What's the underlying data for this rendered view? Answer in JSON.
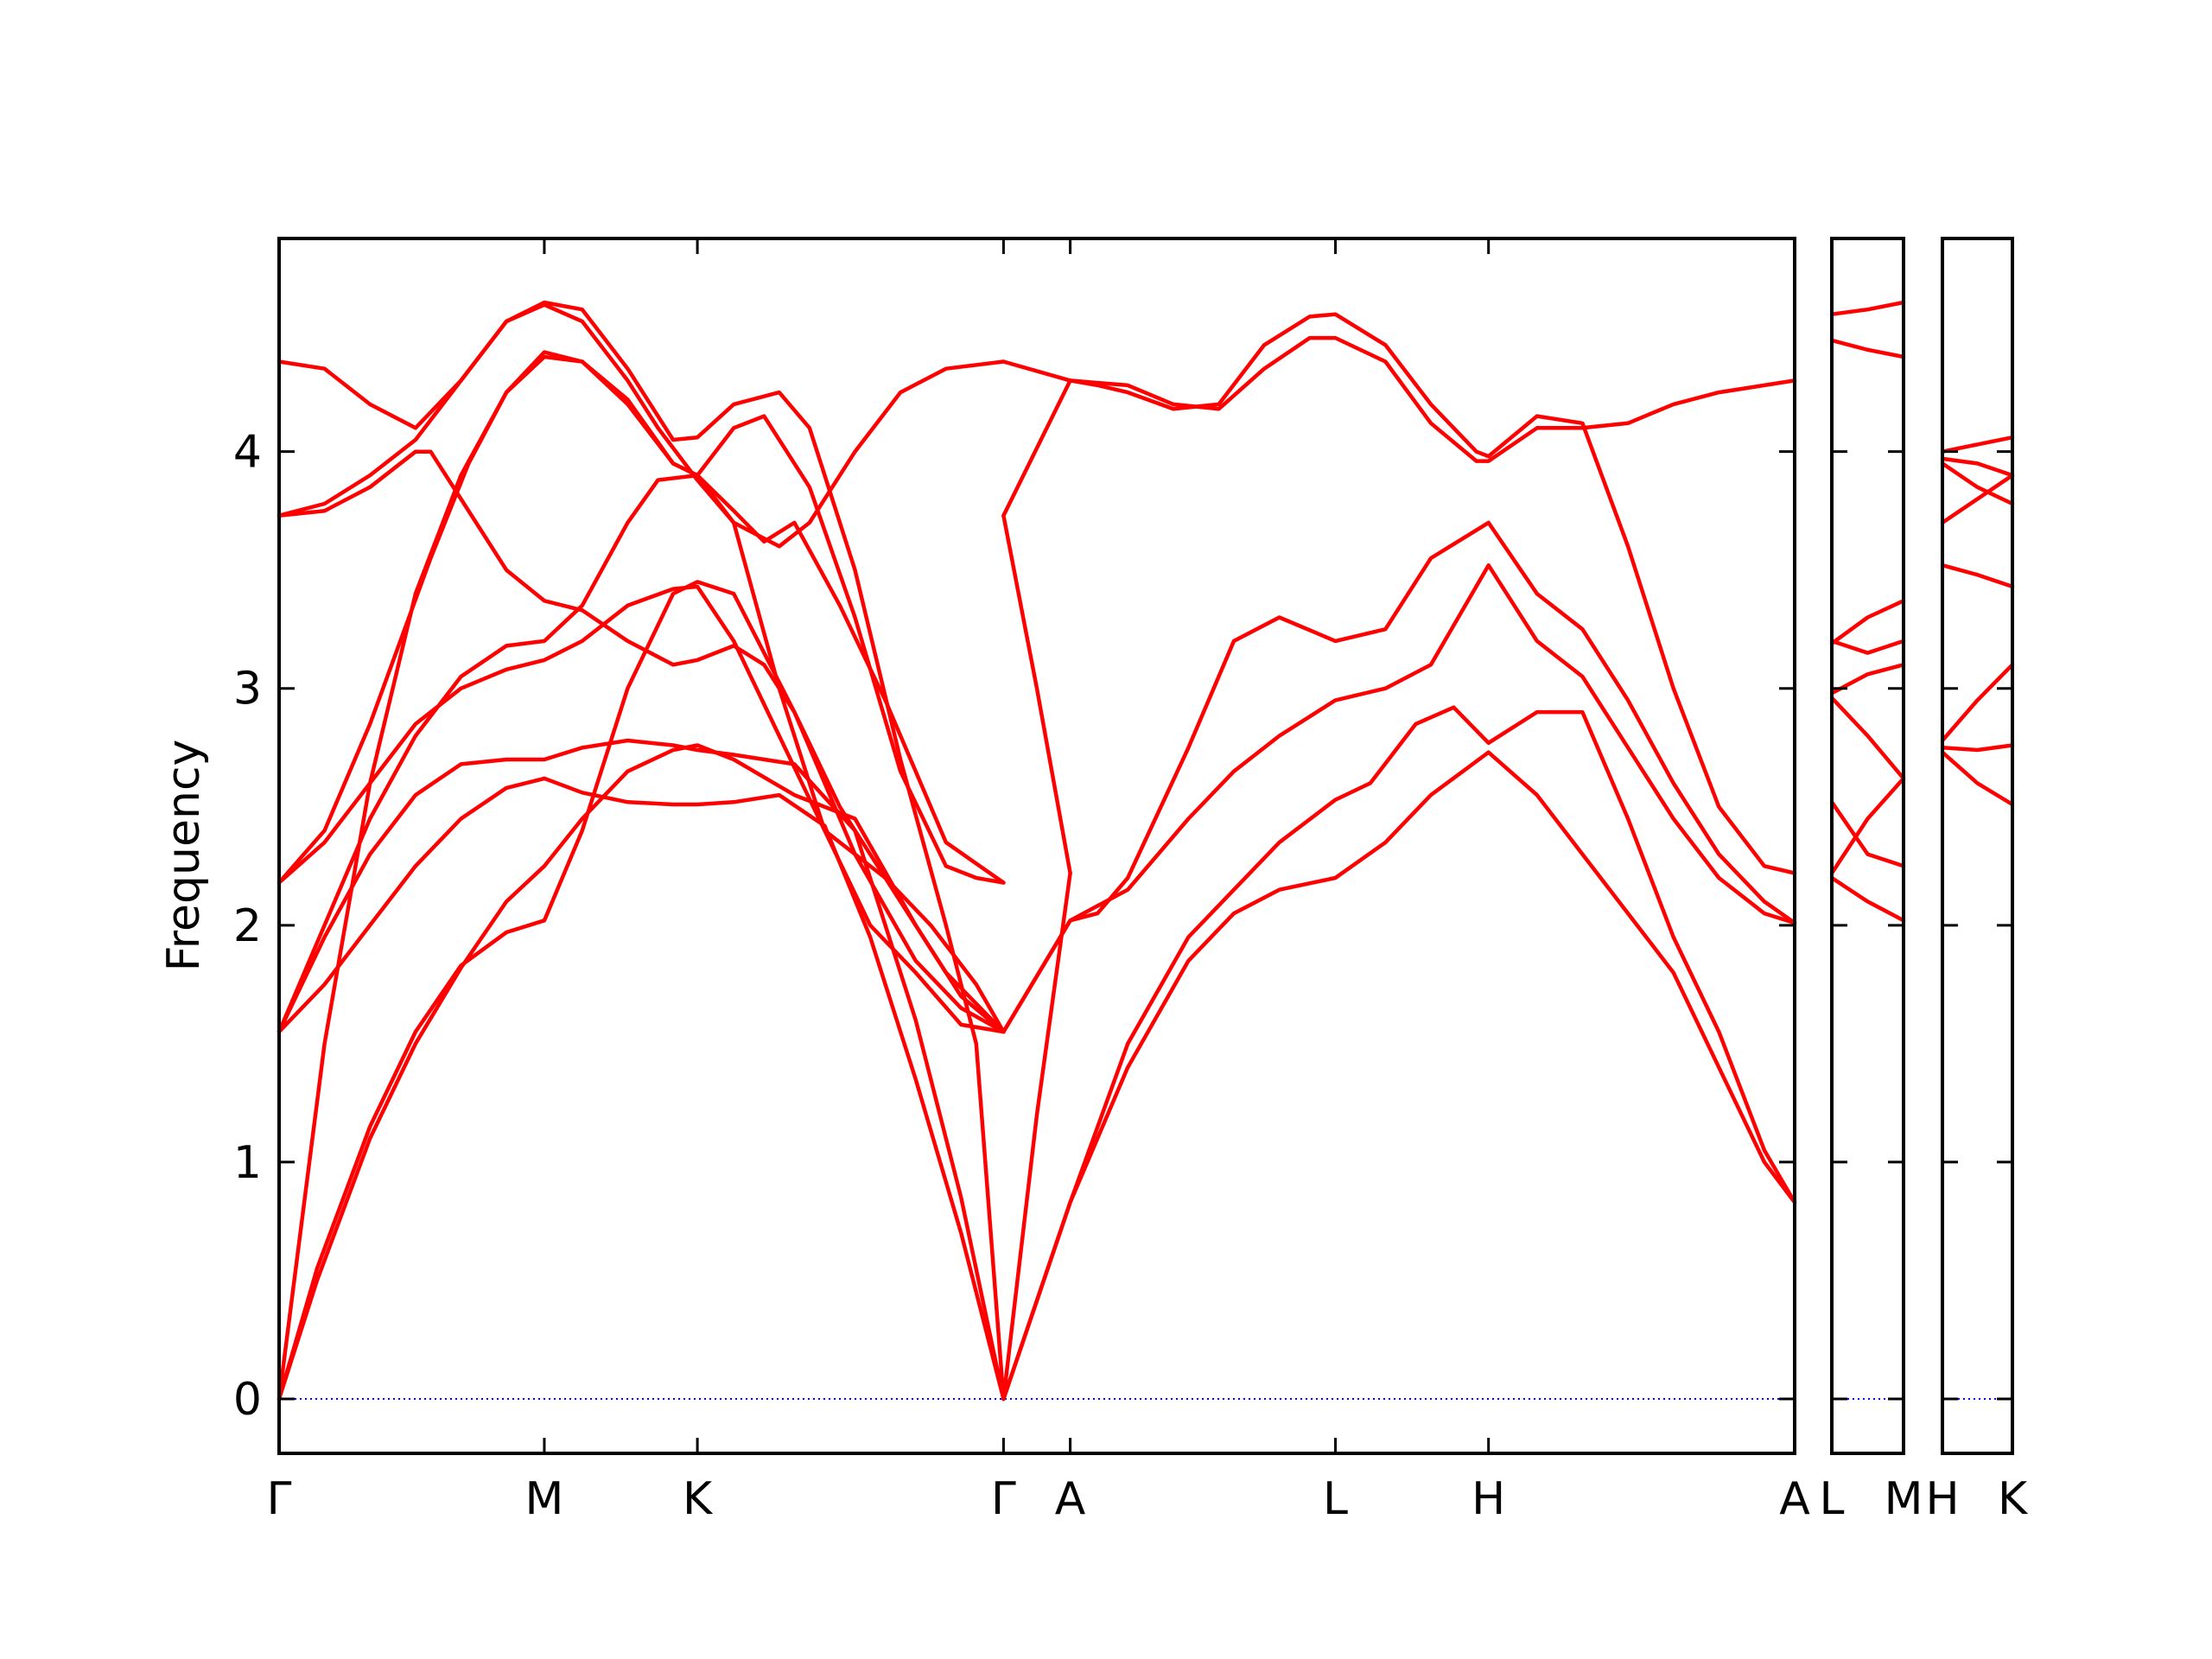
{
  "chart_data": {
    "type": "line",
    "title": "",
    "xlabel": "",
    "ylabel": "Frequency",
    "ylim": [
      -0.23,
      4.9
    ],
    "yticks": [
      0,
      1,
      2,
      3,
      4
    ],
    "zero_line_color": "#0000ff",
    "band_color": "#ff0000",
    "grid": false,
    "panels": [
      {
        "id": "main",
        "xlim": [
          0,
          10
        ],
        "ticks": [
          {
            "x": 0,
            "label": "Γ"
          },
          {
            "x": 1.75,
            "label": "M"
          },
          {
            "x": 2.76,
            "label": "K"
          },
          {
            "x": 4.78,
            "label": "Γ"
          },
          {
            "x": 5.22,
            "label": "A"
          },
          {
            "x": 6.97,
            "label": "L"
          },
          {
            "x": 7.98,
            "label": "H"
          },
          {
            "x": 10,
            "label": "A"
          }
        ],
        "series": [
          {
            "x": [
              0,
              0.25,
              0.6,
              0.9,
              1.2,
              1.5,
              1.75,
              2.0,
              2.3,
              2.6,
              2.76,
              3.0,
              3.4,
              3.8,
              4.2,
              4.5,
              4.78
            ],
            "y": [
              0,
              0.55,
              1.15,
              1.55,
              1.83,
              1.97,
              2.02,
              2.4,
              3.0,
              3.4,
              3.45,
              3.4,
              2.9,
              2.3,
              1.85,
              1.65,
              1.55
            ]
          },
          {
            "x": [
              0,
              0.25,
              0.6,
              0.9,
              1.2,
              1.5,
              1.75,
              2.0,
              2.3,
              2.6,
              2.76,
              3.0,
              3.4,
              3.8,
              4.2,
              4.5,
              4.78
            ],
            "y": [
              0,
              0.5,
              1.1,
              1.5,
              1.82,
              2.1,
              2.25,
              2.45,
              2.65,
              2.74,
              2.76,
              2.7,
              2.55,
              2.45,
              2.0,
              1.7,
              1.55
            ]
          },
          {
            "x": [
              0,
              0.3,
              0.6,
              0.9,
              1.2,
              1.5,
              1.75,
              2.0,
              2.3,
              2.6,
              2.76,
              3.0,
              3.3,
              3.6,
              3.9,
              4.2,
              4.5,
              4.78
            ],
            "y": [
              1.55,
              1.75,
              2.0,
              2.25,
              2.45,
              2.58,
              2.62,
              2.56,
              2.52,
              2.51,
              2.51,
              2.52,
              2.55,
              2.42,
              1.95,
              1.35,
              0.7,
              0
            ]
          },
          {
            "x": [
              0,
              0.3,
              0.6,
              0.9,
              1.2,
              1.5,
              1.75,
              2.0,
              2.3,
              2.6,
              2.76,
              3.0,
              3.4,
              3.8,
              4.2,
              4.5,
              4.78
            ],
            "y": [
              1.55,
              1.95,
              2.3,
              2.55,
              2.68,
              2.7,
              2.7,
              2.75,
              2.78,
              2.76,
              2.74,
              2.72,
              2.68,
              2.4,
              1.6,
              0.85,
              0
            ]
          },
          {
            "x": [
              0,
              0.3,
              0.6,
              0.9,
              1.2,
              1.5,
              1.75,
              2.0,
              2.3,
              2.5,
              2.76,
              3.0,
              3.3,
              3.6,
              3.9,
              4.2,
              4.5,
              4.78
            ],
            "y": [
              1.55,
              2.0,
              2.45,
              2.8,
              3.05,
              3.18,
              3.2,
              3.35,
              3.7,
              3.88,
              3.9,
              3.7,
              3.0,
              2.4,
              2.0,
              1.8,
              1.58,
              1.55
            ]
          },
          {
            "x": [
              0,
              0.3,
              0.6,
              0.9,
              1.2,
              1.5,
              1.75,
              2.0,
              2.3,
              2.6,
              2.76,
              3.0,
              3.3,
              3.6,
              4.0,
              4.4,
              4.78
            ],
            "y": [
              2.18,
              2.35,
              2.6,
              2.85,
              3.0,
              3.08,
              3.12,
              3.2,
              3.35,
              3.42,
              3.43,
              3.2,
              2.8,
              2.4,
              2.2,
              1.8,
              1.55
            ]
          },
          {
            "x": [
              0,
              0.3,
              0.6,
              0.8,
              1.0,
              1.25,
              1.5,
              1.75,
              2.0,
              2.3,
              2.6,
              2.76,
              3.0,
              3.2,
              3.4,
              3.7,
              4.0,
              4.4,
              4.78
            ],
            "y": [
              2.18,
              2.4,
              2.85,
              3.2,
              3.55,
              3.95,
              4.25,
              4.4,
              4.38,
              4.22,
              3.95,
              3.9,
              3.75,
              3.62,
              3.7,
              3.35,
              2.95,
              2.35,
              2.18
            ]
          },
          {
            "x": [
              0,
              0.3,
              0.6,
              0.9,
              1.2,
              1.5,
              1.75,
              2.0,
              2.3,
              2.6,
              2.76,
              3.0,
              3.2,
              3.5,
              3.8,
              4.1,
              4.4,
              4.6,
              4.78
            ],
            "y": [
              0,
              1.5,
              2.6,
              3.4,
              3.9,
              4.25,
              4.42,
              4.38,
              4.2,
              3.95,
              3.9,
              4.1,
              4.15,
              3.85,
              3.3,
              2.65,
              2.25,
              2.2,
              2.18
            ]
          },
          {
            "x": [
              0,
              0.3,
              0.6,
              0.9,
              1.0,
              1.2,
              1.5,
              1.75,
              2.0,
              2.3,
              2.6,
              2.76,
              3.0,
              3.2,
              3.4,
              3.7,
              4.0,
              4.3,
              4.6,
              4.78
            ],
            "y": [
              3.73,
              3.75,
              3.85,
              4.0,
              4.0,
              3.8,
              3.5,
              3.37,
              3.33,
              3.2,
              3.1,
              3.12,
              3.18,
              3.1,
              2.9,
              2.5,
              2.2,
              2.0,
              1.75,
              1.55
            ]
          },
          {
            "x": [
              0,
              0.3,
              0.6,
              0.9,
              1.2,
              1.5,
              1.75,
              2.0,
              2.3,
              2.6,
              2.76,
              3.0,
              3.3,
              3.5,
              3.8,
              4.1,
              4.4,
              4.6,
              4.78
            ],
            "y": [
              4.38,
              4.35,
              4.2,
              4.1,
              4.3,
              4.55,
              4.63,
              4.6,
              4.35,
              4.05,
              4.06,
              4.2,
              4.25,
              4.1,
              3.5,
              2.7,
              2.0,
              1.5,
              0
            ]
          },
          {
            "x": [
              0,
              0.3,
              0.6,
              0.9,
              1.2,
              1.5,
              1.75,
              2.0,
              2.3,
              2.5,
              2.76,
              3.0,
              3.3,
              3.5,
              3.8,
              4.1,
              4.4,
              4.78
            ],
            "y": [
              3.73,
              3.78,
              3.9,
              4.05,
              4.3,
              4.55,
              4.62,
              4.55,
              4.3,
              4.1,
              3.88,
              3.7,
              3.6,
              3.7,
              4.0,
              4.25,
              4.35,
              4.38
            ]
          },
          {
            "x": [
              4.78,
              5.22,
              5.6,
              6.0,
              6.3,
              6.6,
              6.97,
              7.3,
              7.6,
              7.98,
              8.3,
              8.6,
              8.9,
              9.2,
              9.5,
              9.8,
              10
            ],
            "y": [
              0,
              0.83,
              1.4,
              1.85,
              2.05,
              2.15,
              2.2,
              2.35,
              2.55,
              2.73,
              2.55,
              2.3,
              2.05,
              1.8,
              1.4,
              1.0,
              0.83
            ]
          },
          {
            "x": [
              4.78,
              5.22,
              5.6,
              6.0,
              6.3,
              6.6,
              6.97,
              7.2,
              7.5,
              7.75,
              7.98,
              8.3,
              8.6,
              8.9,
              9.2,
              9.5,
              9.8,
              10
            ],
            "y": [
              0,
              0.83,
              1.5,
              1.95,
              2.15,
              2.35,
              2.53,
              2.6,
              2.85,
              2.92,
              2.77,
              2.9,
              2.9,
              2.45,
              1.95,
              1.55,
              1.05,
              0.83
            ]
          },
          {
            "x": [
              4.78,
              5.22,
              5.6,
              6.0,
              6.3,
              6.6,
              6.97,
              7.3,
              7.6,
              7.98,
              8.3,
              8.6,
              8.9,
              9.2,
              9.5,
              9.8,
              10
            ],
            "y": [
              1.55,
              2.02,
              2.15,
              2.45,
              2.65,
              2.8,
              2.95,
              3.0,
              3.1,
              3.52,
              3.2,
              3.05,
              2.75,
              2.45,
              2.2,
              2.05,
              2.01
            ]
          },
          {
            "x": [
              4.78,
              5.22,
              5.4,
              5.6,
              6.0,
              6.3,
              6.6,
              6.97,
              7.3,
              7.6,
              7.98,
              8.3,
              8.6,
              8.9,
              9.2,
              9.5,
              9.8,
              10
            ],
            "y": [
              1.55,
              2.02,
              2.05,
              2.2,
              2.75,
              3.2,
              3.3,
              3.2,
              3.25,
              3.55,
              3.7,
              3.4,
              3.25,
              2.95,
              2.6,
              2.3,
              2.1,
              2.01
            ]
          },
          {
            "x": [
              4.78,
              5.22,
              5.4,
              5.6,
              5.9,
              6.2,
              6.5,
              6.8,
              6.97,
              7.3,
              7.6,
              7.9,
              7.98,
              8.3,
              8.6,
              8.9,
              9.2,
              9.5,
              9.8,
              10
            ],
            "y": [
              3.73,
              4.3,
              4.28,
              4.25,
              4.18,
              4.2,
              4.45,
              4.57,
              4.58,
              4.45,
              4.2,
              4.0,
              3.98,
              4.15,
              4.12,
              3.6,
              3.0,
              2.5,
              2.25,
              2.22
            ]
          },
          {
            "x": [
              4.78,
              5.22,
              5.6,
              5.9,
              6.2,
              6.5,
              6.8,
              6.97,
              7.3,
              7.6,
              7.9,
              7.98,
              8.3,
              8.6,
              8.9,
              9.2,
              9.5,
              9.8,
              10
            ],
            "y": [
              4.38,
              4.3,
              4.28,
              4.2,
              4.18,
              4.35,
              4.48,
              4.48,
              4.38,
              4.12,
              3.96,
              3.96,
              4.1,
              4.1,
              4.12,
              4.2,
              4.25,
              4.28,
              4.3
            ]
          },
          {
            "x": [
              4.78,
              5.0,
              5.22
            ],
            "y": [
              0,
              1.2,
              2.22
            ]
          },
          {
            "x": [
              4.78,
              5.0,
              5.22
            ],
            "y": [
              3.73,
              3.0,
              2.22
            ]
          }
        ]
      },
      {
        "id": "L-M",
        "xlim": [
          0,
          1
        ],
        "ticks": [
          {
            "x": 0,
            "label": "L"
          },
          {
            "x": 1,
            "label": "M"
          }
        ],
        "series": [
          {
            "x": [
              0,
              0.5,
              1
            ],
            "y": [
              2.2,
              2.1,
              2.02
            ]
          },
          {
            "x": [
              0,
              0.5,
              1
            ],
            "y": [
              2.22,
              2.45,
              2.62
            ]
          },
          {
            "x": [
              0,
              0.5,
              1
            ],
            "y": [
              2.52,
              2.3,
              2.25
            ]
          },
          {
            "x": [
              0,
              0.5,
              1
            ],
            "y": [
              2.96,
              2.8,
              2.62
            ]
          },
          {
            "x": [
              0,
              0.5,
              1
            ],
            "y": [
              2.98,
              3.06,
              3.1
            ]
          },
          {
            "x": [
              0,
              0.5,
              1
            ],
            "y": [
              3.2,
              3.15,
              3.2
            ]
          },
          {
            "x": [
              0,
              0.5,
              1
            ],
            "y": [
              3.19,
              3.3,
              3.37
            ]
          },
          {
            "x": [
              0,
              0.5,
              1
            ],
            "y": [
              4.47,
              4.43,
              4.4
            ]
          },
          {
            "x": [
              0,
              0.5,
              1
            ],
            "y": [
              4.58,
              4.6,
              4.63
            ]
          }
        ]
      },
      {
        "id": "H-K",
        "xlim": [
          0,
          1
        ],
        "ticks": [
          {
            "x": 0,
            "label": "H"
          },
          {
            "x": 1,
            "label": "K"
          }
        ],
        "series": [
          {
            "x": [
              0,
              0.5,
              1
            ],
            "y": [
              2.73,
              2.6,
              2.51
            ]
          },
          {
            "x": [
              0,
              0.5,
              1
            ],
            "y": [
              2.75,
              2.74,
              2.76
            ]
          },
          {
            "x": [
              0,
              0.5,
              1
            ],
            "y": [
              2.78,
              2.95,
              3.1
            ]
          },
          {
            "x": [
              0,
              0.5,
              1
            ],
            "y": [
              3.52,
              3.48,
              3.43
            ]
          },
          {
            "x": [
              0,
              0.5,
              1
            ],
            "y": [
              3.7,
              3.8,
              3.9
            ]
          },
          {
            "x": [
              0,
              0.5,
              1
            ],
            "y": [
              3.95,
              3.85,
              3.78
            ]
          },
          {
            "x": [
              0,
              0.5,
              1
            ],
            "y": [
              3.97,
              3.95,
              3.9
            ]
          },
          {
            "x": [
              0,
              0.5,
              1
            ],
            "y": [
              4.0,
              4.03,
              4.06
            ]
          }
        ]
      }
    ]
  }
}
